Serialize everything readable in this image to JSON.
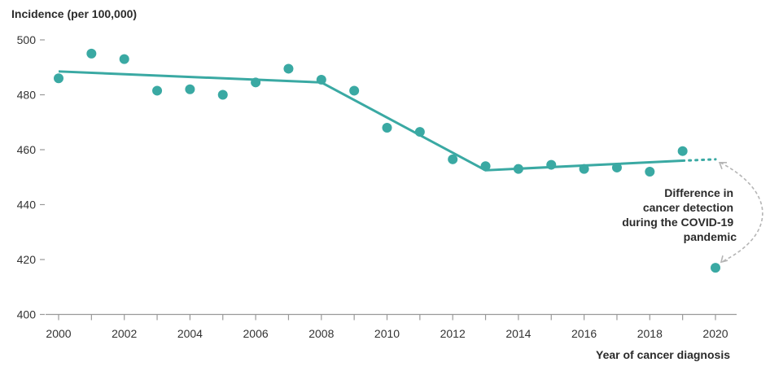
{
  "chart_data": {
    "type": "scatter",
    "ylabel": "Incidence (per 100,000)",
    "xlabel": "Year of cancer diagnosis",
    "xlim": [
      2000,
      2020
    ],
    "ylim": [
      400,
      500
    ],
    "x_ticks": [
      "2000",
      "2002",
      "2004",
      "2006",
      "2008",
      "2010",
      "2012",
      "2014",
      "2016",
      "2018",
      "2020"
    ],
    "y_ticks": [
      "400",
      "420",
      "440",
      "460",
      "480",
      "500"
    ],
    "points": [
      {
        "x": 2000,
        "y": 486
      },
      {
        "x": 2001,
        "y": 495
      },
      {
        "x": 2002,
        "y": 493
      },
      {
        "x": 2003,
        "y": 481.5
      },
      {
        "x": 2004,
        "y": 482
      },
      {
        "x": 2005,
        "y": 480
      },
      {
        "x": 2006,
        "y": 484.5
      },
      {
        "x": 2007,
        "y": 489.5
      },
      {
        "x": 2008,
        "y": 485.5
      },
      {
        "x": 2009,
        "y": 481.5
      },
      {
        "x": 2010,
        "y": 468
      },
      {
        "x": 2011,
        "y": 466.5
      },
      {
        "x": 2012,
        "y": 456.5
      },
      {
        "x": 2013,
        "y": 454
      },
      {
        "x": 2014,
        "y": 453
      },
      {
        "x": 2015,
        "y": 454.5
      },
      {
        "x": 2016,
        "y": 453
      },
      {
        "x": 2017,
        "y": 453.5
      },
      {
        "x": 2018,
        "y": 452
      },
      {
        "x": 2019,
        "y": 459.5
      },
      {
        "x": 2020,
        "y": 417
      }
    ],
    "trend": [
      {
        "x": 2000,
        "y": 488.5
      },
      {
        "x": 2008,
        "y": 484.5
      },
      {
        "x": 2013,
        "y": 452.5
      },
      {
        "x": 2019,
        "y": 456
      }
    ],
    "trend_projection": [
      {
        "x": 2019,
        "y": 456
      },
      {
        "x": 2020,
        "y": 456.5
      }
    ],
    "annotation": {
      "lines": [
        "Difference in",
        "cancer detection",
        "during the COVID-19",
        "pandemic"
      ]
    },
    "colors": {
      "series": "#3aa9a3",
      "axis": "#999999",
      "annotation_arrow": "#b5b5b5",
      "text": "#2b2b2b"
    }
  }
}
